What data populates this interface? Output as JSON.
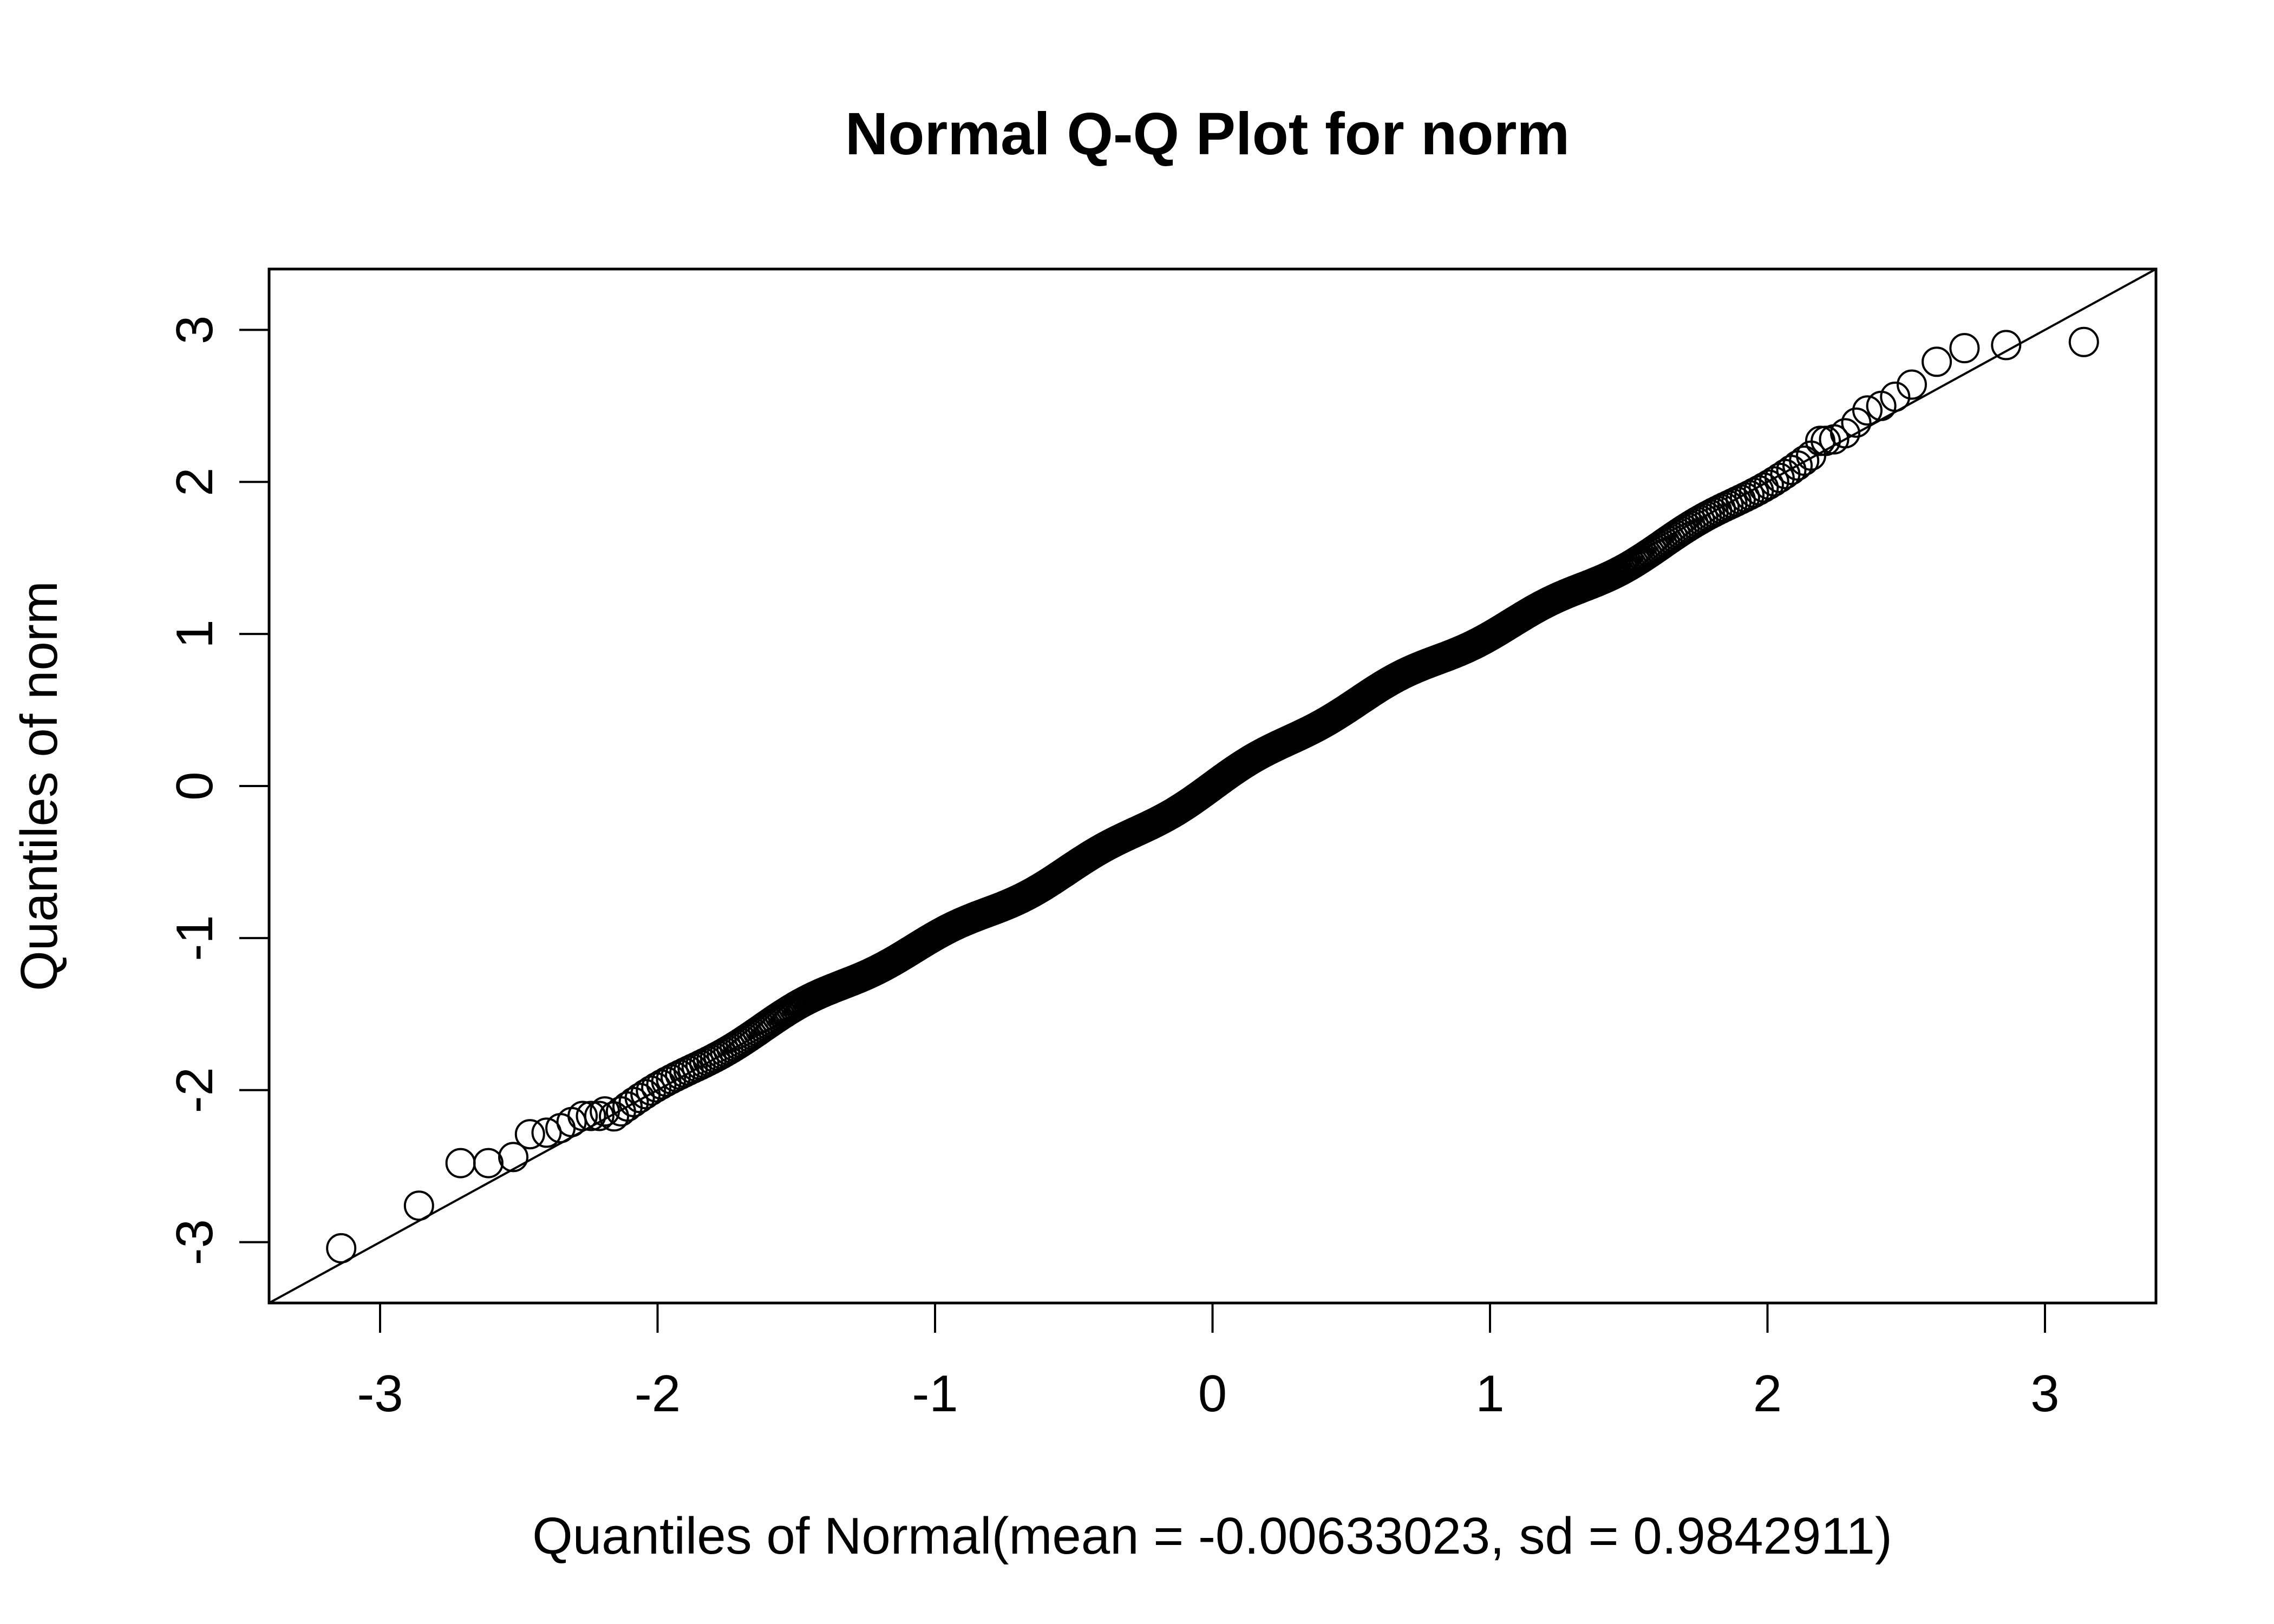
{
  "chart_data": {
    "type": "scatter",
    "title": "Normal Q-Q Plot for norm",
    "xlabel": "Quantiles of Normal(mean = -0.00633023, sd = 0.9842911)",
    "ylabel": "Quantiles of norm",
    "xlim": [
      -3.4,
      3.4
    ],
    "ylim": [
      -3.4,
      3.4
    ],
    "x_ticks": [
      -3,
      -2,
      -1,
      0,
      1,
      2,
      3
    ],
    "x_tick_labels": [
      "-3",
      "-2",
      "-1",
      "0",
      "1",
      "2",
      "3"
    ],
    "y_ticks": [
      -3,
      -2,
      -1,
      0,
      1,
      2,
      3
    ],
    "y_tick_labels": [
      "-3",
      "-2",
      "-1",
      "0",
      "1",
      "2",
      "3"
    ],
    "grid": false,
    "marker": "open-circle",
    "reference_line": {
      "slope": 1,
      "intercept": 0
    },
    "n_points": 1000,
    "tail_points": {
      "x": [
        -3.14,
        -2.86,
        -2.71,
        -2.61,
        -2.52,
        -2.46,
        -2.4,
        -2.35,
        -2.31,
        -2.27,
        -2.24,
        -2.21,
        -2.19,
        2.19,
        2.21,
        2.24,
        2.28,
        2.32,
        2.36,
        2.41,
        2.46,
        2.52,
        2.61,
        2.71,
        2.86,
        3.14
      ],
      "y": [
        -3.04,
        -2.76,
        -2.48,
        -2.48,
        -2.44,
        -2.29,
        -2.28,
        -2.25,
        -2.21,
        -2.17,
        -2.17,
        -2.17,
        -2.14,
        2.27,
        2.27,
        2.28,
        2.32,
        2.39,
        2.47,
        2.5,
        2.56,
        2.64,
        2.79,
        2.88,
        2.9,
        2.92
      ]
    },
    "body_point_range": [
      -2.18,
      2.18
    ]
  }
}
